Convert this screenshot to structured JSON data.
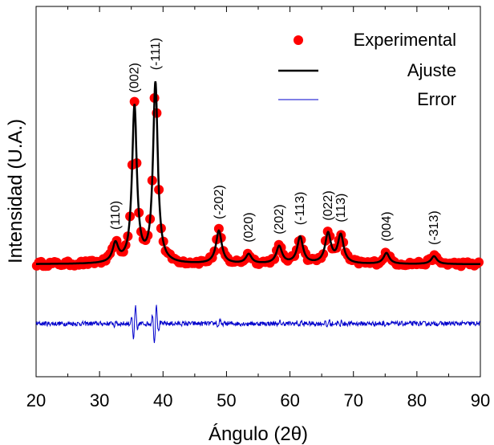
{
  "chart_data": {
    "type": "line",
    "xlabel": "Ángulo (2θ)",
    "ylabel": "Intensidad (U.A.)",
    "xlim": [
      20,
      90
    ],
    "x_ticks": [
      20,
      30,
      40,
      50,
      60,
      70,
      80,
      90
    ],
    "y_ticks_labeled": false,
    "grid": false,
    "legend": {
      "placement": "top-right",
      "entries": [
        {
          "name": "Experimental",
          "style": "marker",
          "color": "#ff0000"
        },
        {
          "name": "Ajuste",
          "style": "line",
          "color": "#000000"
        },
        {
          "name": "Error",
          "style": "line",
          "color": "#0000cc"
        }
      ]
    },
    "peaks": [
      {
        "label": "(110)",
        "x": 32.5,
        "height": 0.12
      },
      {
        "label": "(002)",
        "x": 35.5,
        "height": 1.0
      },
      {
        "label": "(-111)",
        "x": 38.8,
        "height": 1.15
      },
      {
        "label": "(-202)",
        "x": 48.8,
        "height": 0.21
      },
      {
        "label": "(020)",
        "x": 53.5,
        "height": 0.06
      },
      {
        "label": "(202)",
        "x": 58.3,
        "height": 0.11
      },
      {
        "label": "(-113)",
        "x": 61.6,
        "height": 0.17
      },
      {
        "label": "(022)",
        "x": 66.0,
        "height": 0.19
      },
      {
        "label": "(113)",
        "x": 68.0,
        "height": 0.18
      },
      {
        "label": "(004)",
        "x": 75.2,
        "height": 0.07
      },
      {
        "label": "(-313)",
        "x": 82.7,
        "height": 0.05
      }
    ],
    "baseline_experimental": 0.0,
    "error_offset": -0.38,
    "ylim": [
      -0.72,
      1.65
    ]
  }
}
